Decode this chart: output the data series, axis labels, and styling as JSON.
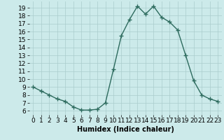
{
  "x": [
    0,
    1,
    2,
    3,
    4,
    5,
    6,
    7,
    8,
    9,
    10,
    11,
    12,
    13,
    14,
    15,
    16,
    17,
    18,
    19,
    20,
    21,
    22,
    23
  ],
  "y": [
    9,
    8.5,
    8,
    7.5,
    7.2,
    6.5,
    6.1,
    6.1,
    6.2,
    7,
    11.2,
    15.5,
    17.5,
    19.2,
    18.2,
    19.2,
    17.8,
    17.2,
    16.2,
    13,
    9.8,
    8,
    7.5,
    7.2
  ],
  "line_color": "#2d6b5e",
  "marker": "+",
  "marker_size": 4,
  "linewidth": 1.0,
  "bg_color": "#cceaea",
  "grid_color": "#aacccc",
  "xlabel": "Humidex (Indice chaleur)",
  "xlim": [
    -0.5,
    23.5
  ],
  "ylim": [
    5.5,
    19.8
  ],
  "yticks": [
    6,
    7,
    8,
    9,
    10,
    11,
    12,
    13,
    14,
    15,
    16,
    17,
    18,
    19
  ],
  "xticks": [
    0,
    1,
    2,
    3,
    4,
    5,
    6,
    7,
    8,
    9,
    10,
    11,
    12,
    13,
    14,
    15,
    16,
    17,
    18,
    19,
    20,
    21,
    22,
    23
  ],
  "xlabel_fontsize": 7,
  "tick_fontsize": 6.5
}
